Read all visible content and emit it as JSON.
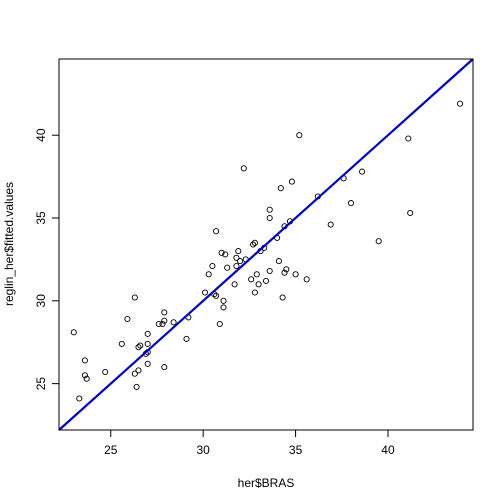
{
  "chart_data": {
    "type": "scatter",
    "title": "",
    "xlabel": "her$BRAS",
    "ylabel": "reglin_her$fitted.values",
    "xlim": [
      22.2,
      44.6
    ],
    "ylim": [
      22.2,
      44.6
    ],
    "x_ticks": [
      25,
      30,
      35,
      40
    ],
    "y_ticks": [
      25,
      30,
      35,
      40
    ],
    "grid": false,
    "legend": "none",
    "reference_line": {
      "intercept": 0,
      "slope": 1,
      "color": "#0000CD"
    },
    "points": [
      [
        23.0,
        28.1
      ],
      [
        23.3,
        24.1
      ],
      [
        23.6,
        26.4
      ],
      [
        23.6,
        25.5
      ],
      [
        23.7,
        25.3
      ],
      [
        24.7,
        25.7
      ],
      [
        25.6,
        27.4
      ],
      [
        25.9,
        28.9
      ],
      [
        26.3,
        30.2
      ],
      [
        26.3,
        25.6
      ],
      [
        26.4,
        24.8
      ],
      [
        26.5,
        27.2
      ],
      [
        26.5,
        25.8
      ],
      [
        26.6,
        27.3
      ],
      [
        26.9,
        26.8
      ],
      [
        27.0,
        28.0
      ],
      [
        27.0,
        26.9
      ],
      [
        27.0,
        27.4
      ],
      [
        27.0,
        26.2
      ],
      [
        27.6,
        28.6
      ],
      [
        27.8,
        28.6
      ],
      [
        27.9,
        29.3
      ],
      [
        27.9,
        28.8
      ],
      [
        27.9,
        26.0
      ],
      [
        28.4,
        28.7
      ],
      [
        29.1,
        27.7
      ],
      [
        29.2,
        29.0
      ],
      [
        30.1,
        30.5
      ],
      [
        30.3,
        31.6
      ],
      [
        30.5,
        32.1
      ],
      [
        30.6,
        30.4
      ],
      [
        30.7,
        34.2
      ],
      [
        30.7,
        30.3
      ],
      [
        30.9,
        28.6
      ],
      [
        31.0,
        32.9
      ],
      [
        31.1,
        30.0
      ],
      [
        31.1,
        29.6
      ],
      [
        31.2,
        32.8
      ],
      [
        31.3,
        32.0
      ],
      [
        31.7,
        31.0
      ],
      [
        31.8,
        32.1
      ],
      [
        31.8,
        32.6
      ],
      [
        31.9,
        33.0
      ],
      [
        32.0,
        32.4
      ],
      [
        32.2,
        38.0
      ],
      [
        32.3,
        32.5
      ],
      [
        32.6,
        31.3
      ],
      [
        32.7,
        33.4
      ],
      [
        32.8,
        33.5
      ],
      [
        32.8,
        30.5
      ],
      [
        32.9,
        31.6
      ],
      [
        33.0,
        31.0
      ],
      [
        33.1,
        33.0
      ],
      [
        33.3,
        33.2
      ],
      [
        33.4,
        31.2
      ],
      [
        33.6,
        35.5
      ],
      [
        33.6,
        35.0
      ],
      [
        33.6,
        31.8
      ],
      [
        34.0,
        33.8
      ],
      [
        34.1,
        32.4
      ],
      [
        34.2,
        36.8
      ],
      [
        34.3,
        30.2
      ],
      [
        34.4,
        34.5
      ],
      [
        34.5,
        31.9
      ],
      [
        34.4,
        31.7
      ],
      [
        34.7,
        34.8
      ],
      [
        34.8,
        37.2
      ],
      [
        35.0,
        31.6
      ],
      [
        35.2,
        40.0
      ],
      [
        35.6,
        31.3
      ],
      [
        36.2,
        36.3
      ],
      [
        36.9,
        34.6
      ],
      [
        37.6,
        37.4
      ],
      [
        38.0,
        35.9
      ],
      [
        38.6,
        37.8
      ],
      [
        39.5,
        33.6
      ],
      [
        41.1,
        39.8
      ],
      [
        41.2,
        35.3
      ],
      [
        43.9,
        41.9
      ]
    ]
  }
}
